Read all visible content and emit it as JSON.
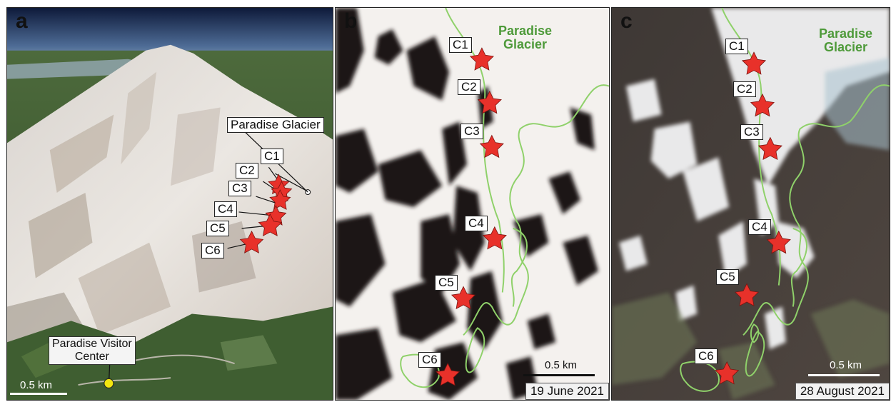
{
  "panels": {
    "a": {
      "letter": "a",
      "glacier_label": "Paradise Glacier",
      "visitor_center_line1": "Paradise Visitor",
      "visitor_center_line2": "Center",
      "scale": "0.5 km",
      "camera_labels": [
        "C1",
        "C2",
        "C3",
        "C4",
        "C5",
        "C6"
      ]
    },
    "b": {
      "letter": "b",
      "glacier_line1": "Paradise",
      "glacier_line2": "Glacier",
      "scale": "0.5 km",
      "date": "19 June 2021",
      "camera_labels": [
        "C1",
        "C2",
        "C3",
        "C4",
        "C5",
        "C6"
      ]
    },
    "c": {
      "letter": "c",
      "glacier_line1": "Paradise",
      "glacier_line2": "Glacier",
      "scale": "0.5 km",
      "date": "28 August 2021",
      "camera_labels": [
        "C1",
        "C2",
        "C3",
        "C4",
        "C5",
        "C6"
      ]
    }
  },
  "colors": {
    "star": "#e8312a",
    "glacier_outline": "#8fd16a",
    "glacier_text": "#4e9a3a",
    "visitor_center": "#f3e60f"
  },
  "icons": {
    "camera_marker": "star-icon",
    "visitor_center_marker": "circle-marker-icon"
  }
}
